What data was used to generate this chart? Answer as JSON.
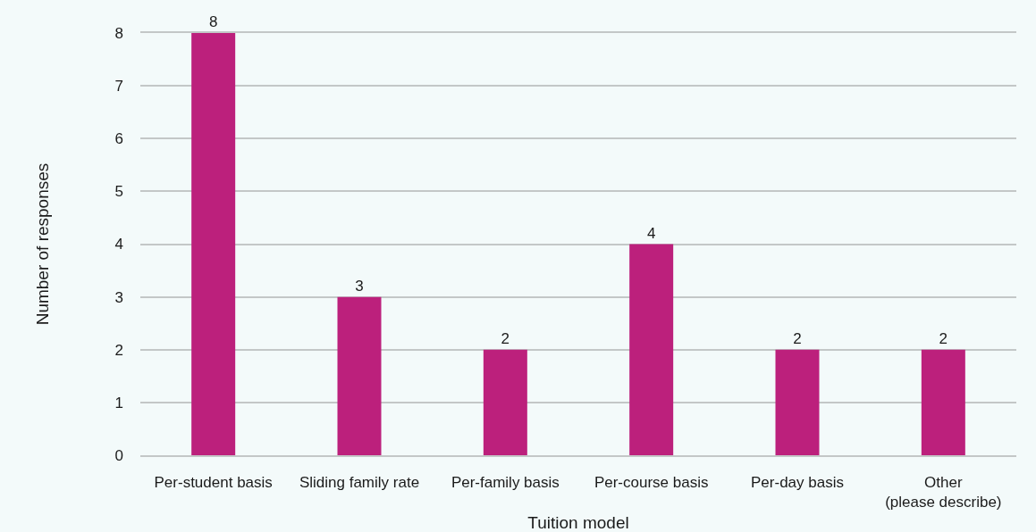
{
  "chart_data": {
    "type": "bar",
    "categories": [
      "Per-student basis",
      "Sliding family rate",
      "Per-family basis",
      "Per-course basis",
      "Per-day basis",
      "Other\n(please describe)"
    ],
    "values": [
      8,
      3,
      2,
      4,
      2,
      2
    ],
    "color": "#bc207c",
    "xlabel": "Tuition model",
    "ylabel": "Number of responses",
    "ylim": [
      0,
      8
    ],
    "yticks": [
      0,
      1,
      2,
      3,
      4,
      5,
      6,
      7,
      8
    ],
    "grid": "y",
    "data_labels": true
  }
}
